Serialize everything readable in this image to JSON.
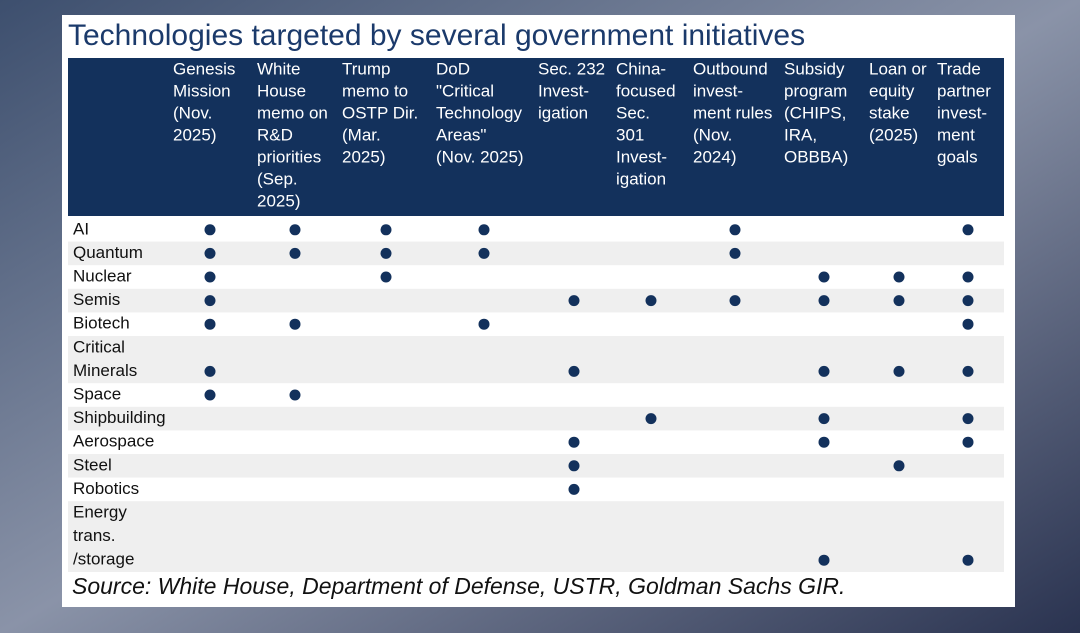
{
  "title": "Technologies targeted by several government initiatives",
  "table": {
    "columns": [
      [
        "Genesis",
        "Mission",
        "(Nov.",
        "2025)"
      ],
      [
        "White",
        "House",
        "memo on",
        "R&D",
        "priorities",
        "(Sep.",
        "2025)"
      ],
      [
        "Trump",
        "memo to",
        "OSTP Dir.",
        "(Mar.",
        "2025)"
      ],
      [
        "DoD",
        "\"Critical",
        "Technology",
        "Areas\"",
        "(Nov. 2025)"
      ],
      [
        "Sec. 232",
        "Invest-",
        "igation"
      ],
      [
        "China-",
        "focused",
        "Sec.",
        "301",
        "Invest-",
        "igation"
      ],
      [
        "Outbound",
        "invest-",
        "ment rules",
        "(Nov.",
        "2024)"
      ],
      [
        "Subsidy",
        "program",
        "(CHIPS,",
        "IRA,",
        "OBBBA)"
      ],
      [
        "Loan or",
        "equity",
        "stake",
        "(2025)"
      ],
      [
        "Trade",
        "partner",
        "invest-",
        "ment",
        "goals"
      ]
    ],
    "rows": [
      {
        "label": [
          "AI"
        ],
        "cells": [
          true,
          true,
          true,
          true,
          false,
          false,
          true,
          false,
          false,
          true
        ]
      },
      {
        "label": [
          "Quantum"
        ],
        "cells": [
          true,
          true,
          true,
          true,
          false,
          false,
          true,
          false,
          false,
          false
        ]
      },
      {
        "label": [
          "Nuclear"
        ],
        "cells": [
          true,
          false,
          true,
          false,
          false,
          false,
          false,
          true,
          true,
          true
        ]
      },
      {
        "label": [
          "Semis"
        ],
        "cells": [
          true,
          false,
          false,
          false,
          true,
          true,
          true,
          true,
          true,
          true
        ]
      },
      {
        "label": [
          "Biotech"
        ],
        "cells": [
          true,
          true,
          false,
          true,
          false,
          false,
          false,
          false,
          false,
          true
        ]
      },
      {
        "label": [
          "Critical",
          "Minerals"
        ],
        "cells": [
          true,
          false,
          false,
          false,
          true,
          false,
          false,
          true,
          true,
          true
        ]
      },
      {
        "label": [
          "Space"
        ],
        "cells": [
          true,
          true,
          false,
          false,
          false,
          false,
          false,
          false,
          false,
          false
        ]
      },
      {
        "label": [
          "Shipbuilding"
        ],
        "cells": [
          false,
          false,
          false,
          false,
          false,
          true,
          false,
          true,
          false,
          true
        ]
      },
      {
        "label": [
          "Aerospace"
        ],
        "cells": [
          false,
          false,
          false,
          false,
          true,
          false,
          false,
          true,
          false,
          true
        ]
      },
      {
        "label": [
          "Steel"
        ],
        "cells": [
          false,
          false,
          false,
          false,
          true,
          false,
          false,
          false,
          true,
          false
        ]
      },
      {
        "label": [
          "Robotics"
        ],
        "cells": [
          false,
          false,
          false,
          false,
          true,
          false,
          false,
          false,
          false,
          false
        ]
      },
      {
        "label": [
          "Energy",
          "trans.",
          "/storage"
        ],
        "cells": [
          false,
          false,
          false,
          false,
          false,
          false,
          false,
          true,
          false,
          true
        ]
      }
    ]
  },
  "source": "Source: White House, Department of Defense, USTR, Goldman Sachs GIR."
}
